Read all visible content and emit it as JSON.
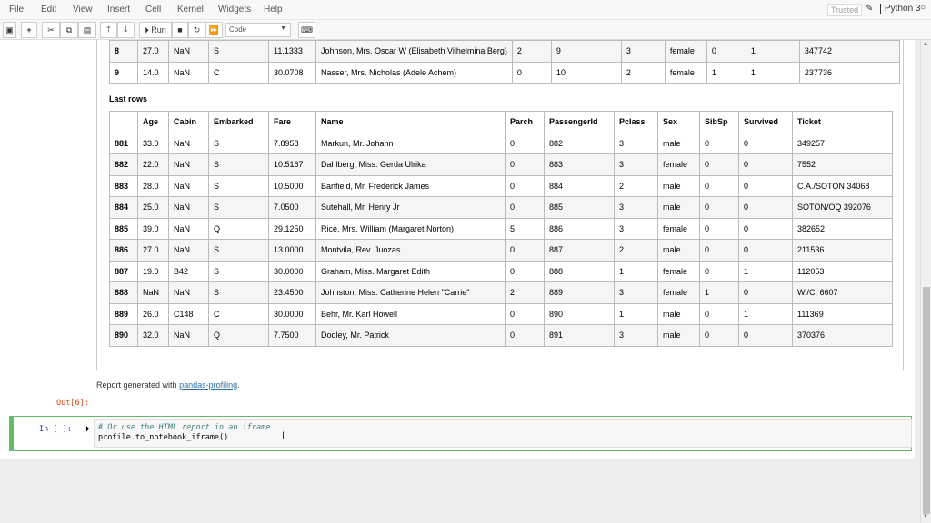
{
  "menu": [
    "File",
    "Edit",
    "View",
    "Insert",
    "Cell",
    "Kernel",
    "Widgets",
    "Help"
  ],
  "status": {
    "trusted": "Trusted",
    "kernel": "Python 3"
  },
  "toolbar": {
    "run": "Run",
    "cell_type": "Code"
  },
  "top_table": {
    "rows": [
      [
        "8",
        "27.0",
        "NaN",
        "S",
        "11.1333",
        "Johnson, Mrs. Oscar W (Elisabeth Vilhelmina Berg)",
        "2",
        "9",
        "3",
        "female",
        "0",
        "1",
        "347742"
      ],
      [
        "9",
        "14.0",
        "NaN",
        "C",
        "30.0708",
        "Nasser, Mrs. Nicholas (Adele Achem)",
        "0",
        "10",
        "2",
        "female",
        "1",
        "1",
        "237736"
      ]
    ]
  },
  "last_rows": {
    "title": "Last rows",
    "headers": [
      "",
      "Age",
      "Cabin",
      "Embarked",
      "Fare",
      "Name",
      "Parch",
      "PassengerId",
      "Pclass",
      "Sex",
      "SibSp",
      "Survived",
      "Ticket"
    ],
    "rows": [
      [
        "881",
        "33.0",
        "NaN",
        "S",
        "7.8958",
        "Markun, Mr. Johann",
        "0",
        "882",
        "3",
        "male",
        "0",
        "0",
        "349257"
      ],
      [
        "882",
        "22.0",
        "NaN",
        "S",
        "10.5167",
        "Dahlberg, Miss. Gerda Ulrika",
        "0",
        "883",
        "3",
        "female",
        "0",
        "0",
        "7552"
      ],
      [
        "883",
        "28.0",
        "NaN",
        "S",
        "10.5000",
        "Banfield, Mr. Frederick James",
        "0",
        "884",
        "2",
        "male",
        "0",
        "0",
        "C.A./SOTON 34068"
      ],
      [
        "884",
        "25.0",
        "NaN",
        "S",
        "7.0500",
        "Sutehall, Mr. Henry Jr",
        "0",
        "885",
        "3",
        "male",
        "0",
        "0",
        "SOTON/OQ 392076"
      ],
      [
        "885",
        "39.0",
        "NaN",
        "Q",
        "29.1250",
        "Rice, Mrs. William (Margaret Norton)",
        "5",
        "886",
        "3",
        "female",
        "0",
        "0",
        "382652"
      ],
      [
        "886",
        "27.0",
        "NaN",
        "S",
        "13.0000",
        "Montvila, Rev. Juozas",
        "0",
        "887",
        "2",
        "male",
        "0",
        "0",
        "211536"
      ],
      [
        "887",
        "19.0",
        "B42",
        "S",
        "30.0000",
        "Graham, Miss. Margaret Edith",
        "0",
        "888",
        "1",
        "female",
        "0",
        "1",
        "112053"
      ],
      [
        "888",
        "NaN",
        "NaN",
        "S",
        "23.4500",
        "Johnston, Miss. Catherine Helen \"Carrie\"",
        "2",
        "889",
        "3",
        "female",
        "1",
        "0",
        "W./C. 6607"
      ],
      [
        "889",
        "26.0",
        "C148",
        "C",
        "30.0000",
        "Behr, Mr. Karl Howell",
        "0",
        "890",
        "1",
        "male",
        "0",
        "1",
        "111369"
      ],
      [
        "890",
        "32.0",
        "NaN",
        "Q",
        "7.7500",
        "Dooley, Mr. Patrick",
        "0",
        "891",
        "3",
        "male",
        "0",
        "0",
        "370376"
      ]
    ]
  },
  "report": {
    "prefix": "Report generated with ",
    "link": "pandas-profiling",
    "suffix": "."
  },
  "out_prompt": "Out[6]:",
  "in_prompt": "In [ ]:",
  "code": {
    "line1": "# Or use the HTML report in an iframe",
    "line2": "profile.to_notebook_iframe()"
  }
}
